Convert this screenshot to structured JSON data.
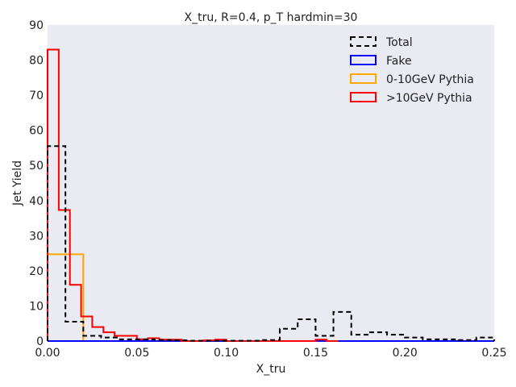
{
  "chart_data": {
    "type": "histogram",
    "title": "X_tru, R=0.4, p_T hardmin=30",
    "xlabel": "X_tru",
    "ylabel": "Jet Yield",
    "xlim": [
      0,
      0.25
    ],
    "ylim": [
      0,
      90
    ],
    "xticks": [
      0.0,
      0.05,
      0.1,
      0.15,
      0.2,
      0.25
    ],
    "xtick_labels": [
      "0.00",
      "0.05",
      "0.10",
      "0.15",
      "0.20",
      "0.25"
    ],
    "yticks": [
      0,
      10,
      20,
      30,
      40,
      50,
      60,
      70,
      80,
      90
    ],
    "ytick_labels": [
      "0",
      "10",
      "20",
      "30",
      "40",
      "50",
      "60",
      "70",
      "80",
      "90"
    ],
    "grid": false,
    "background": "#eaeaf2",
    "legend_position": "top-right",
    "series": [
      {
        "name": "Total",
        "color": "#000000",
        "dashed": true,
        "edges": [
          0.0,
          0.01,
          0.02,
          0.03,
          0.04,
          0.05,
          0.06,
          0.07,
          0.08,
          0.09,
          0.1,
          0.11,
          0.12,
          0.13,
          0.14,
          0.15,
          0.16,
          0.17,
          0.18,
          0.19,
          0.2,
          0.21,
          0.22,
          0.23,
          0.24,
          0.25
        ],
        "values": [
          55.5,
          5.5,
          1.5,
          1.0,
          0.5,
          0.5,
          0.3,
          0.2,
          0.1,
          0.1,
          0.1,
          0.1,
          0.3,
          3.5,
          6.2,
          1.5,
          8.3,
          1.8,
          2.5,
          1.8,
          1.0,
          0.5,
          0.5,
          0.3,
          1.0
        ]
      },
      {
        "name": "Fake",
        "color": "#0000ff",
        "dashed": false,
        "edges": [
          0.0,
          0.25
        ],
        "values": [
          0
        ]
      },
      {
        "name": "0-10GeV Pythia",
        "color": "#ffa500",
        "dashed": false,
        "edges": [
          0.0,
          0.02,
          0.25
        ],
        "values": [
          24.7,
          0
        ]
      },
      {
        "name": ">10GeV Pythia",
        "color": "#ff0000",
        "dashed": false,
        "edges": [
          0.0,
          0.00625,
          0.0125,
          0.01875,
          0.025,
          0.03125,
          0.0375,
          0.04375,
          0.05,
          0.05625,
          0.0625,
          0.06875,
          0.075,
          0.08125,
          0.0875,
          0.09375,
          0.1,
          0.10625,
          0.1125,
          0.11875,
          0.125,
          0.13125,
          0.1375,
          0.14375,
          0.15,
          0.15625,
          0.1625
        ],
        "values": [
          83,
          37.3,
          16,
          7,
          4,
          2.5,
          1.5,
          1.5,
          0.5,
          0.8,
          0.4,
          0.4,
          0,
          0,
          0.2,
          0.4,
          0,
          0,
          0,
          0,
          0,
          0,
          0,
          0,
          0.4,
          0
        ]
      }
    ]
  }
}
